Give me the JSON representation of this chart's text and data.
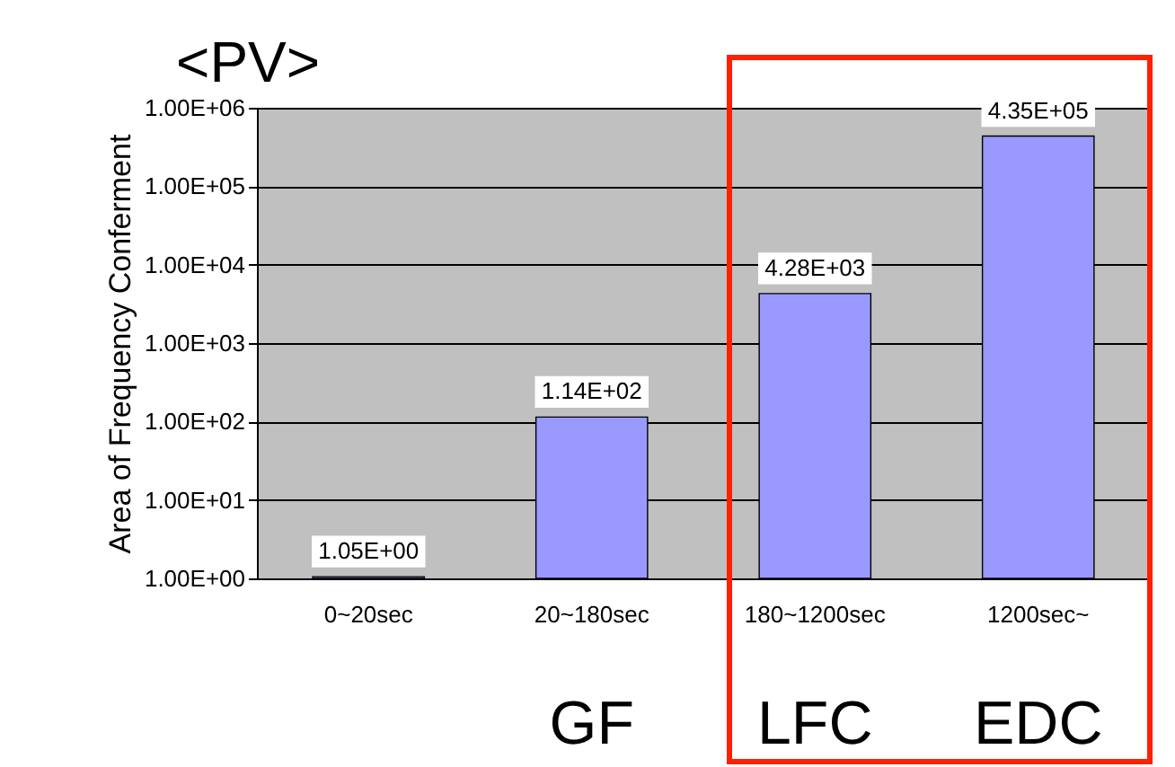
{
  "chart_data": {
    "type": "bar",
    "title": "<PV>",
    "ylabel": "Area of Frequency Conferment",
    "categories": [
      "0~20sec",
      "20~180sec",
      "180~1200sec",
      "1200sec~"
    ],
    "values": [
      1.05,
      114,
      4280,
      435000
    ],
    "value_labels": [
      "1.05E+00",
      "1.14E+02",
      "4.28E+03",
      "4.35E+05"
    ],
    "color": "#9999ff",
    "log": true,
    "ylim": [
      1,
      1000000
    ],
    "yticks": [
      {
        "value": 1,
        "label": "1.00E+00"
      },
      {
        "value": 10,
        "label": "1.00E+01"
      },
      {
        "value": 100,
        "label": "1.00E+02"
      },
      {
        "value": 1000,
        "label": "1.00E+03"
      },
      {
        "value": 10000,
        "label": "1.00E+04"
      },
      {
        "value": 100000,
        "label": "1.00E+05"
      },
      {
        "value": 1000000,
        "label": "1.00E+06"
      }
    ],
    "grid": "y",
    "annotations": [
      "GF",
      "LFC",
      "EDC"
    ]
  }
}
